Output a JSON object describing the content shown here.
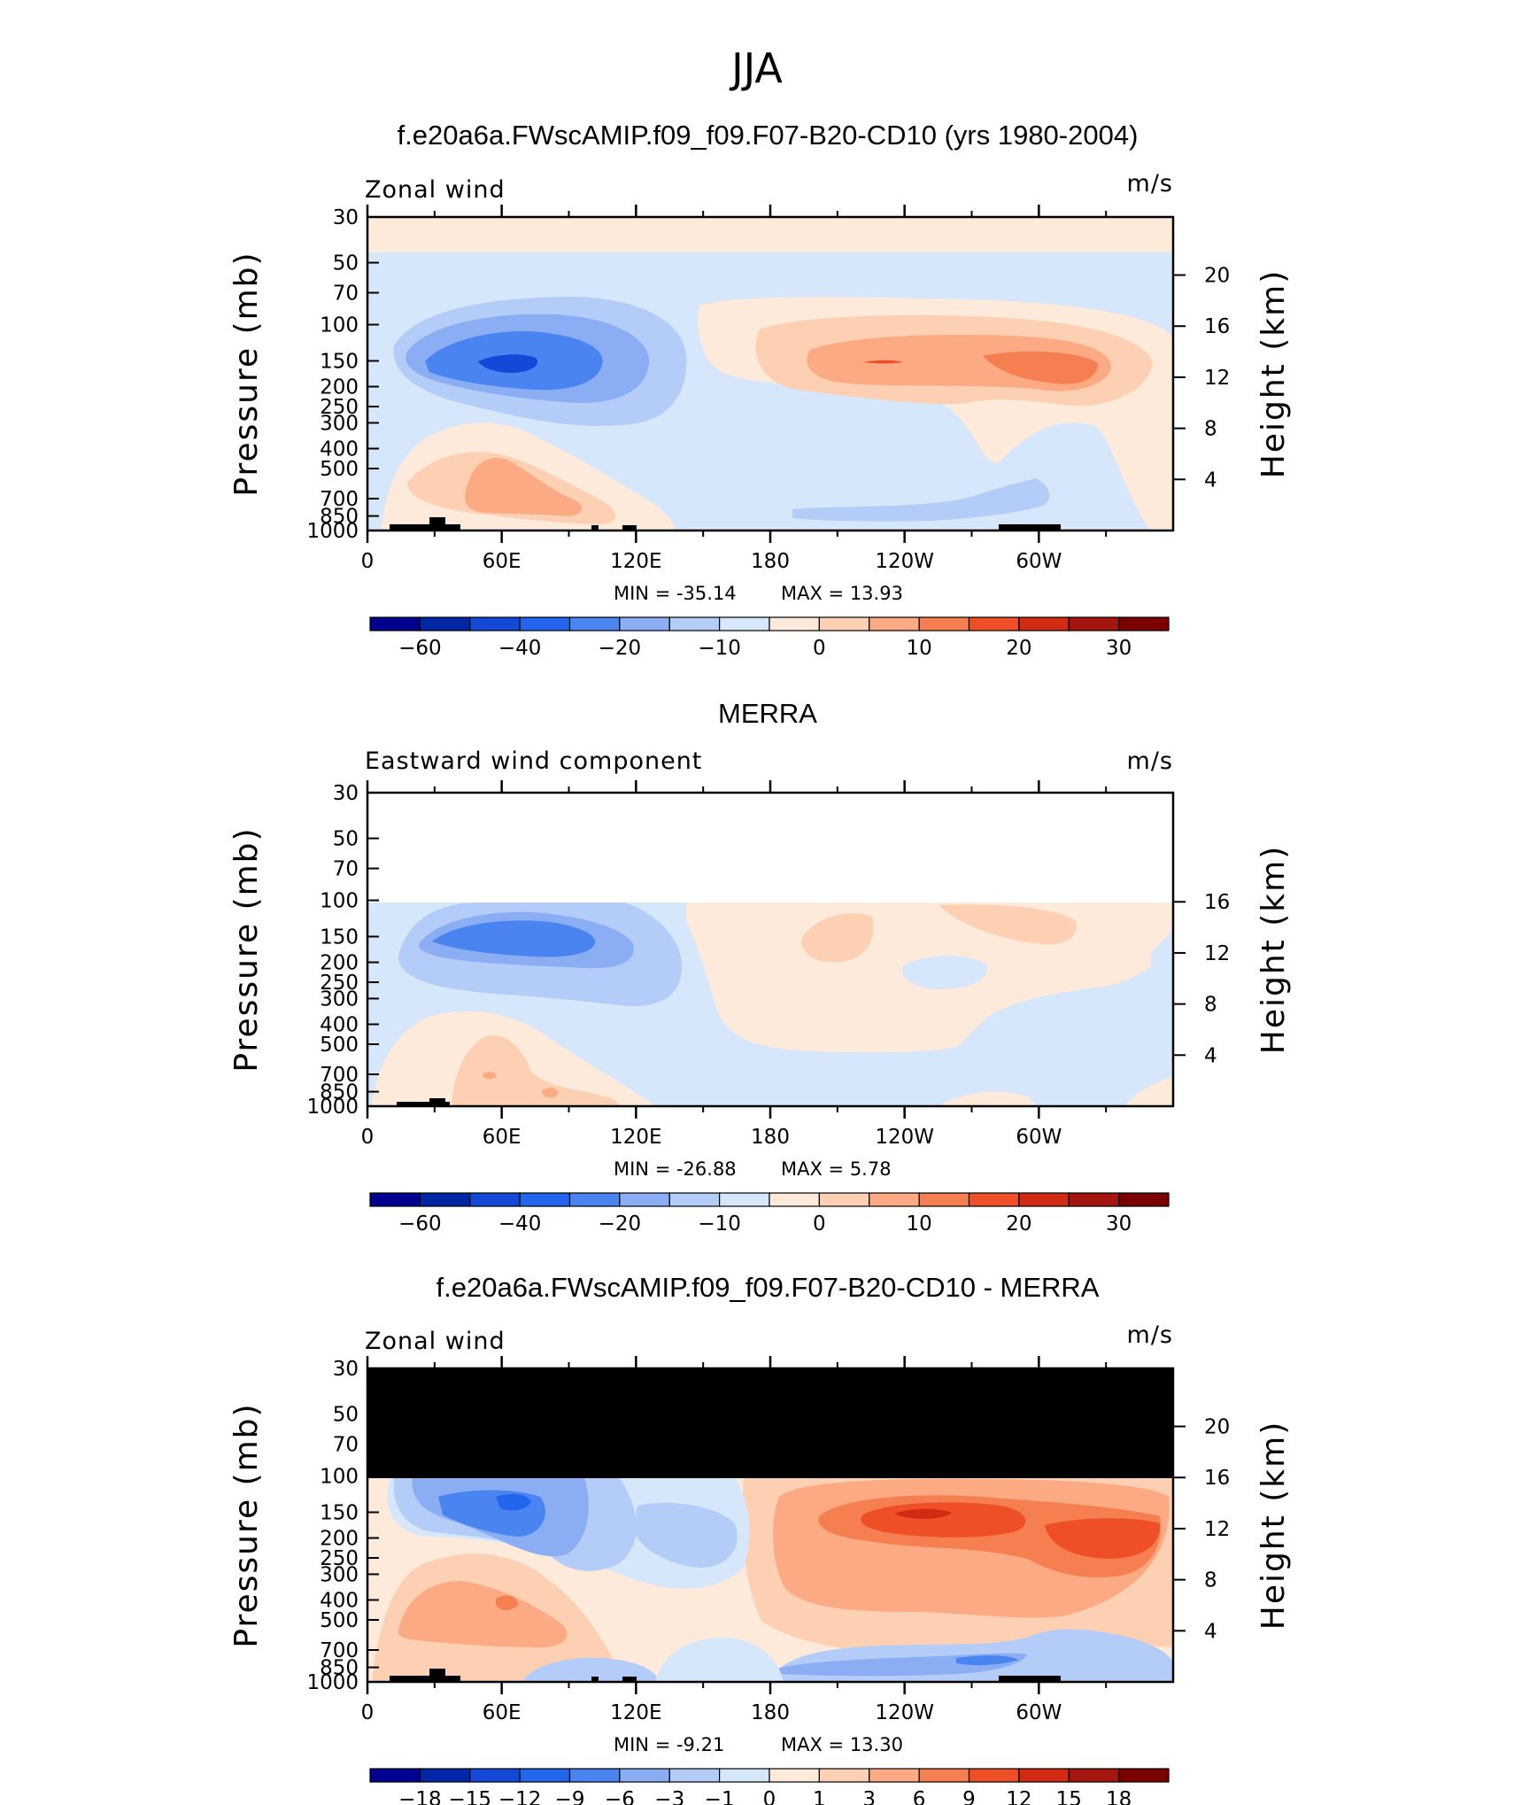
{
  "title": "JJA",
  "x_ticks": [
    "0",
    "60E",
    "120E",
    "180",
    "120W",
    "60W"
  ],
  "y_ticks": [
    "30",
    "50",
    "70",
    "100",
    "150",
    "200",
    "250",
    "300",
    "400",
    "500",
    "700",
    "850",
    "1000"
  ],
  "y_label": "Pressure (mb)",
  "y2_label": "Height (km)",
  "colors": {
    "abs_scale": [
      "#000090",
      "#0026a6",
      "#1448d7",
      "#2465ed",
      "#4984f0",
      "#8aadf4",
      "#b3ccf8",
      "#d6e6fb",
      "#feeadb",
      "#fdd0b3",
      "#fcaa84",
      "#f67f52",
      "#ee4f26",
      "#d12b14",
      "#a51510",
      "#7b0000"
    ],
    "diff_scale": [
      "#000090",
      "#0026a6",
      "#1448d7",
      "#2465ed",
      "#4984f0",
      "#8aadf4",
      "#b3ccf8",
      "#d6e6fb",
      "#feeadb",
      "#fdd0b3",
      "#fcaa84",
      "#f67f52",
      "#ee4f26",
      "#d12b14",
      "#a51510",
      "#7b0000"
    ],
    "topography": "#000000",
    "missing_mask": "#000000"
  },
  "panels": [
    {
      "subtitle": "f.e20a6a.FWscAMIP.f09_f09.F07-B20-CD10 (yrs 1980-2004)",
      "left_label": "Zonal wind",
      "units": "m/s",
      "min_label": "MIN = -35.14",
      "max_label": "MAX = 13.93",
      "y2_ticks": [
        "20",
        "16",
        "12",
        "8",
        "4"
      ],
      "colorbar_labels": [
        "-60",
        "-40",
        "-20",
        "-10",
        "0",
        "10",
        "20",
        "30"
      ]
    },
    {
      "subtitle": "MERRA",
      "left_label": "Eastward wind component",
      "units": "m/s",
      "min_label": "MIN = -26.88",
      "max_label": "MAX = 5.78",
      "y2_ticks": [
        "16",
        "12",
        "8",
        "4"
      ],
      "colorbar_labels": [
        "-60",
        "-40",
        "-20",
        "-10",
        "0",
        "10",
        "20",
        "30"
      ]
    },
    {
      "subtitle": "f.e20a6a.FWscAMIP.f09_f09.F07-B20-CD10 - MERRA",
      "left_label": "Zonal wind",
      "units": "m/s",
      "min_label": "MIN = -9.21",
      "max_label": "MAX = 13.30",
      "y2_ticks": [
        "20",
        "16",
        "12",
        "8",
        "4"
      ],
      "colorbar_labels": [
        "-18",
        "-15",
        "-12",
        "-9",
        "-6",
        "-3",
        "-1",
        "0",
        "1",
        "3",
        "6",
        "9",
        "12",
        "15",
        "18"
      ]
    }
  ],
  "chart_data": [
    {
      "type": "heatmap",
      "title": "f.e20a6a.FWscAMIP.f09_f09.F07-B20-CD10 (yrs 1980-2004)",
      "variable": "Zonal wind",
      "units": "m/s",
      "xlabel": "",
      "ylabel": "Pressure (mb)",
      "y2label": "Height (km)",
      "xlim": [
        0,
        360
      ],
      "ylim": [
        1000,
        30
      ],
      "y_scale": "log",
      "min": -35.14,
      "max": 13.93,
      "levels": [
        -70,
        -60,
        -50,
        -40,
        -30,
        -20,
        -15,
        -10,
        -5,
        0,
        5,
        10,
        15,
        20,
        25,
        30,
        35
      ],
      "features": [
        {
          "feature": "westward jet core",
          "lon": 75,
          "p": 150,
          "value": -35
        },
        {
          "feature": "westward jet (outer)",
          "lon_range": [
            20,
            135
          ],
          "p_range": [
            90,
            300
          ],
          "value": -15
        },
        {
          "feature": "eastward jet",
          "lon_range": [
            165,
            355
          ],
          "p_range": [
            90,
            300
          ],
          "value": 10
        },
        {
          "feature": "eastward jet core",
          "lon": 325,
          "p": 150,
          "value": 13.9
        },
        {
          "feature": "low-level westerlies",
          "lon_range": [
            10,
            110
          ],
          "p_range": [
            350,
            900
          ],
          "value": 10
        },
        {
          "feature": "stratospheric westerlies",
          "lon_range": [
            0,
            360
          ],
          "p_range": [
            30,
            45
          ],
          "value": 2
        }
      ]
    },
    {
      "type": "heatmap",
      "title": "MERRA",
      "variable": "Eastward wind component",
      "units": "m/s",
      "xlabel": "",
      "ylabel": "Pressure (mb)",
      "y2label": "Height (km)",
      "xlim": [
        0,
        360
      ],
      "ylim": [
        1000,
        30
      ],
      "y_scale": "log",
      "min": -26.88,
      "max": 5.78,
      "levels": [
        -70,
        -60,
        -50,
        -40,
        -30,
        -20,
        -15,
        -10,
        -5,
        0,
        5,
        10,
        15,
        20,
        25,
        30,
        35
      ],
      "features": [
        {
          "feature": "no data",
          "p_range": [
            30,
            100
          ]
        },
        {
          "feature": "westward jet core",
          "lon": 75,
          "p": 150,
          "value": -25
        },
        {
          "feature": "westward jet (outer)",
          "lon_range": [
            20,
            135
          ],
          "p_range": [
            100,
            300
          ],
          "value": -10
        },
        {
          "feature": "weak eastward jet",
          "lon_range": [
            165,
            320
          ],
          "p_range": [
            100,
            300
          ],
          "value": 3
        },
        {
          "feature": "low-level westerlies",
          "lon_range": [
            10,
            115
          ],
          "p_range": [
            400,
            950
          ],
          "value": 4
        }
      ]
    },
    {
      "type": "heatmap",
      "title": "f.e20a6a.FWscAMIP.f09_f09.F07-B20-CD10 - MERRA",
      "variable": "Zonal wind",
      "units": "m/s",
      "xlabel": "",
      "ylabel": "Pressure (mb)",
      "y2label": "Height (km)",
      "xlim": [
        0,
        360
      ],
      "ylim": [
        1000,
        30
      ],
      "y_scale": "log",
      "min": -9.21,
      "max": 13.3,
      "levels": [
        -21,
        -18,
        -15,
        -12,
        -9,
        -6,
        -3,
        -1,
        0,
        1,
        3,
        6,
        9,
        12,
        15,
        18,
        21
      ],
      "features": [
        {
          "feature": "masked (no MERRA data)",
          "p_range": [
            30,
            100
          ]
        },
        {
          "feature": "negative difference core",
          "lon": 60,
          "p": 140,
          "value": -9
        },
        {
          "feature": "positive difference core",
          "lon": 250,
          "p": 150,
          "value": 13
        },
        {
          "feature": "positive difference",
          "lon": 320,
          "p": 200,
          "value": 10
        },
        {
          "feature": "positive difference (low levels)",
          "lon_range": [
            5,
            110
          ],
          "p_range": [
            300,
            800
          ],
          "value": 5
        },
        {
          "feature": "negative difference (near surface)",
          "lon_range": [
            180,
            360
          ],
          "p_range": [
            750,
            950
          ],
          "value": -4
        }
      ]
    }
  ]
}
